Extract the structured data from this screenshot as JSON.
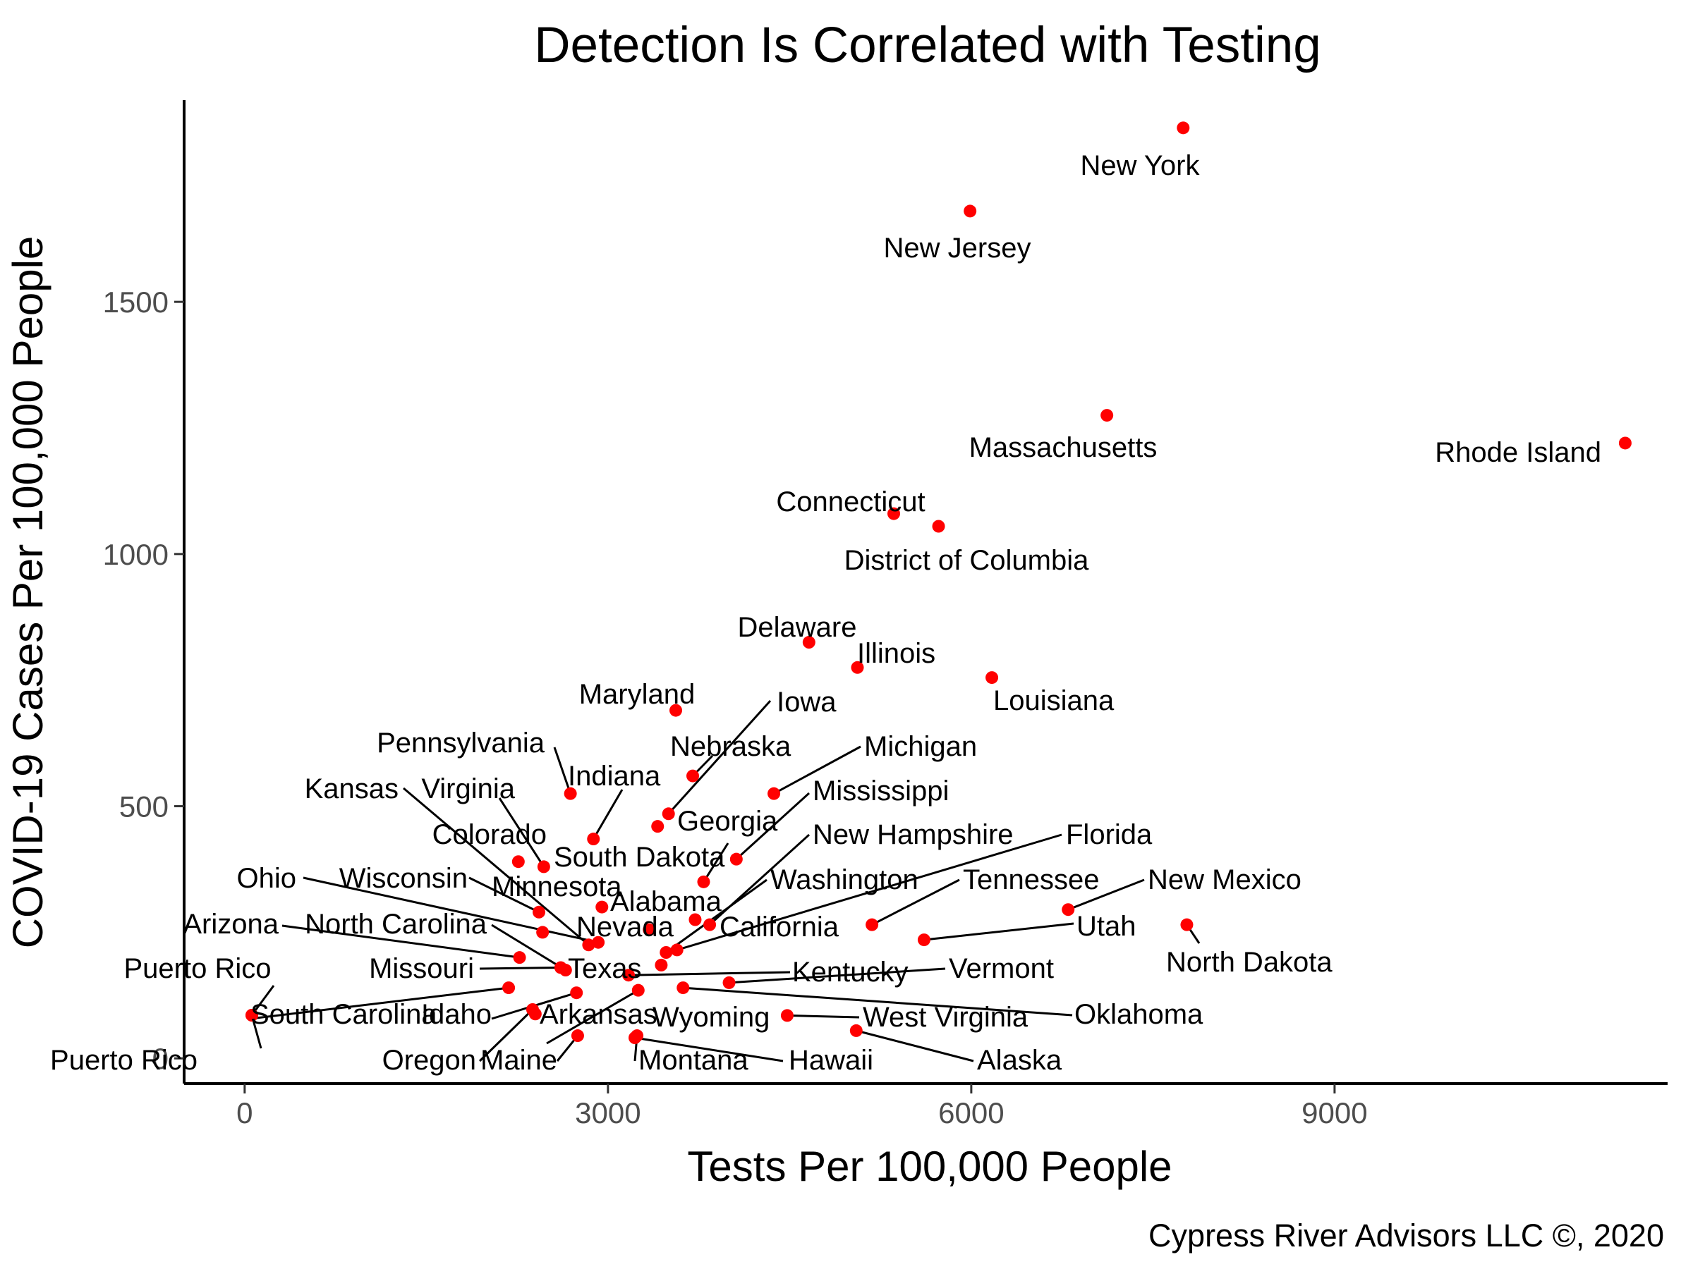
{
  "chart_data": {
    "type": "scatter",
    "title": "Detection Is Correlated with Testing",
    "xlabel": "Tests Per 100,000 People",
    "ylabel": "COVID-19 Cases Per 100,000 People",
    "caption": "Cypress River Advisors LLC ©, 2020",
    "xlim": [
      -500,
      11750
    ],
    "ylim": [
      -50,
      1900
    ],
    "xticks": [
      0,
      3000,
      6000,
      9000
    ],
    "yticks": [
      0,
      500,
      1000,
      1500
    ],
    "xtick_labels": [
      "0",
      "3000",
      "6000",
      "9000"
    ],
    "ytick_labels": [
      "0",
      "500",
      "1000",
      "1500"
    ],
    "grid": false,
    "point_color": "#ff0000",
    "points": [
      {
        "name": "New York",
        "x": 7750,
        "y": 1845,
        "label": "New York"
      },
      {
        "name": "New Jersey",
        "x": 5990,
        "y": 1680,
        "label": "New Jersey"
      },
      {
        "name": "Massachusetts",
        "x": 7120,
        "y": 1275,
        "label": "Massachusetts"
      },
      {
        "name": "Rhode Island",
        "x": 11400,
        "y": 1220,
        "label": "Rhode Island"
      },
      {
        "name": "Connecticut",
        "x": 5360,
        "y": 1080,
        "label": "Connecticut"
      },
      {
        "name": "District of Columbia",
        "x": 5730,
        "y": 1055,
        "label": "District of Columbia"
      },
      {
        "name": "Delaware",
        "x": 4660,
        "y": 825,
        "label": "Delaware"
      },
      {
        "name": "Illinois",
        "x": 5060,
        "y": 775,
        "label": "Illinois"
      },
      {
        "name": "Louisiana",
        "x": 6170,
        "y": 755,
        "label": "Louisiana"
      },
      {
        "name": "Maryland",
        "x": 3560,
        "y": 690,
        "label": "Maryland"
      },
      {
        "name": "Iowa",
        "x": 3500,
        "y": 485,
        "label": "Iowa"
      },
      {
        "name": "Nebraska",
        "x": 3700,
        "y": 560,
        "label": "Nebraska"
      },
      {
        "name": "Michigan",
        "x": 4370,
        "y": 525,
        "label": "Michigan"
      },
      {
        "name": "Pennsylvania",
        "x": 2690,
        "y": 525,
        "label": "Pennsylvania"
      },
      {
        "name": "Indiana",
        "x": 2880,
        "y": 435,
        "label": "Indiana"
      },
      {
        "name": "Georgia",
        "x": 3410,
        "y": 460,
        "label": "Georgia"
      },
      {
        "name": "Mississippi",
        "x": 4060,
        "y": 395,
        "label": "Mississippi"
      },
      {
        "name": "Virginia",
        "x": 2470,
        "y": 380,
        "label": "Virginia"
      },
      {
        "name": "Colorado",
        "x": 2260,
        "y": 390,
        "label": "Colorado"
      },
      {
        "name": "South Dakota",
        "x": 3790,
        "y": 350,
        "label": "South Dakota"
      },
      {
        "name": "Kansas",
        "x": 2840,
        "y": 225,
        "label": "Kansas"
      },
      {
        "name": "New Hampshire",
        "x": 3840,
        "y": 265,
        "label": "New Hampshire"
      },
      {
        "name": "Florida",
        "x": 3570,
        "y": 215,
        "label": "Florida"
      },
      {
        "name": "Washington",
        "x": 3480,
        "y": 210,
        "label": "Washington"
      },
      {
        "name": "Tennessee",
        "x": 5180,
        "y": 265,
        "label": "Tennessee"
      },
      {
        "name": "New Mexico",
        "x": 6800,
        "y": 295,
        "label": "New Mexico"
      },
      {
        "name": "Utah",
        "x": 5610,
        "y": 235,
        "label": "Utah"
      },
      {
        "name": "North Dakota",
        "x": 7780,
        "y": 265,
        "label": "North Dakota"
      },
      {
        "name": "Wisconsin",
        "x": 2430,
        "y": 290,
        "label": "Wisconsin"
      },
      {
        "name": "Minnesota",
        "x": 2460,
        "y": 250,
        "label": "Minnesota"
      },
      {
        "name": "Alabama",
        "x": 2950,
        "y": 300,
        "label": "Alabama"
      },
      {
        "name": "Ohio",
        "x": 2920,
        "y": 230,
        "label": "Ohio"
      },
      {
        "name": "Nevada",
        "x": 3340,
        "y": 255,
        "label": "Nevada"
      },
      {
        "name": "California",
        "x": 3720,
        "y": 275,
        "label": "California"
      },
      {
        "name": "North Carolina",
        "x": 2650,
        "y": 175,
        "label": "North Carolina"
      },
      {
        "name": "Arizona",
        "x": 2270,
        "y": 200,
        "label": "Arizona"
      },
      {
        "name": "Missouri",
        "x": 2610,
        "y": 180,
        "label": "Missouri"
      },
      {
        "name": "Texas",
        "x": 3440,
        "y": 185,
        "label": "Texas"
      },
      {
        "name": "Kentucky",
        "x": 3170,
        "y": 165,
        "label": "Kentucky"
      },
      {
        "name": "Vermont",
        "x": 4000,
        "y": 150,
        "label": "Vermont"
      },
      {
        "name": "Idaho",
        "x": 2740,
        "y": 130,
        "label": "Idaho"
      },
      {
        "name": "Arkansas",
        "x": 3250,
        "y": 135,
        "label": "Arkansas"
      },
      {
        "name": "South Carolina",
        "x": 2180,
        "y": 140,
        "label": "South Carolina"
      },
      {
        "name": "Oklahoma",
        "x": 3620,
        "y": 140,
        "label": "Oklahoma"
      },
      {
        "name": "Wyoming",
        "x": 2400,
        "y": 88,
        "label": "Wyoming"
      },
      {
        "name": "West Virginia",
        "x": 4480,
        "y": 85,
        "label": "West Virginia"
      },
      {
        "name": "Alaska",
        "x": 5050,
        "y": 55,
        "label": "Alaska"
      },
      {
        "name": "Maine",
        "x": 2750,
        "y": 45,
        "label": "Maine"
      },
      {
        "name": "Montana",
        "x": 3240,
        "y": 45,
        "label": "Montana"
      },
      {
        "name": "Hawaii",
        "x": 3240,
        "y": 45,
        "label": "Hawaii"
      },
      {
        "name": "Oregon",
        "x": 2740,
        "y": 130,
        "label": "Oregon"
      },
      {
        "name": "Puerto Rico",
        "x": 70,
        "y": 88,
        "label": "Puerto Rico"
      },
      {
        "name": "Puerto Rico (2)",
        "x": 70,
        "y": 88,
        "label": "Puerto Rico"
      }
    ]
  }
}
